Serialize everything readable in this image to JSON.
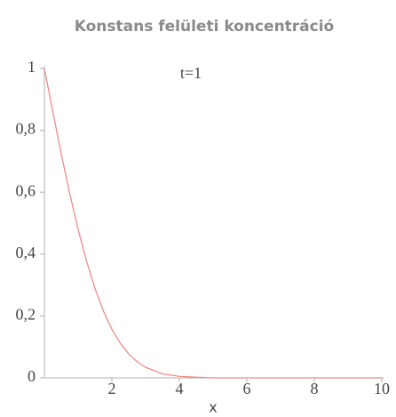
{
  "chart_data": {
    "type": "line",
    "title": "Konstans felületi koncentráció",
    "annotation": "t=1",
    "xlabel": "x",
    "x": [
      0,
      0.25,
      0.5,
      0.75,
      1,
      1.25,
      1.5,
      1.75,
      2,
      2.25,
      2.5,
      2.75,
      3,
      3.5,
      4,
      4.5,
      5,
      6,
      7,
      8,
      9,
      10
    ],
    "series": [
      {
        "color": "#f08a8a",
        "values": [
          1,
          0.86,
          0.724,
          0.596,
          0.48,
          0.377,
          0.289,
          0.216,
          0.157,
          0.112,
          0.077,
          0.052,
          0.034,
          0.013,
          0.005,
          0.002,
          0,
          0,
          0,
          0,
          0,
          0
        ]
      }
    ],
    "xlim": [
      0,
      10
    ],
    "ylim": [
      0,
      1
    ],
    "xticks": [
      2,
      4,
      6,
      8,
      10
    ],
    "yticks": [
      0,
      {
        "value": 0.2,
        "label": "0,2"
      },
      {
        "value": 0.4,
        "label": "0,4"
      },
      {
        "value": 0.6,
        "label": "0,6"
      },
      {
        "value": 0.8,
        "label": "0,8"
      },
      1
    ]
  }
}
